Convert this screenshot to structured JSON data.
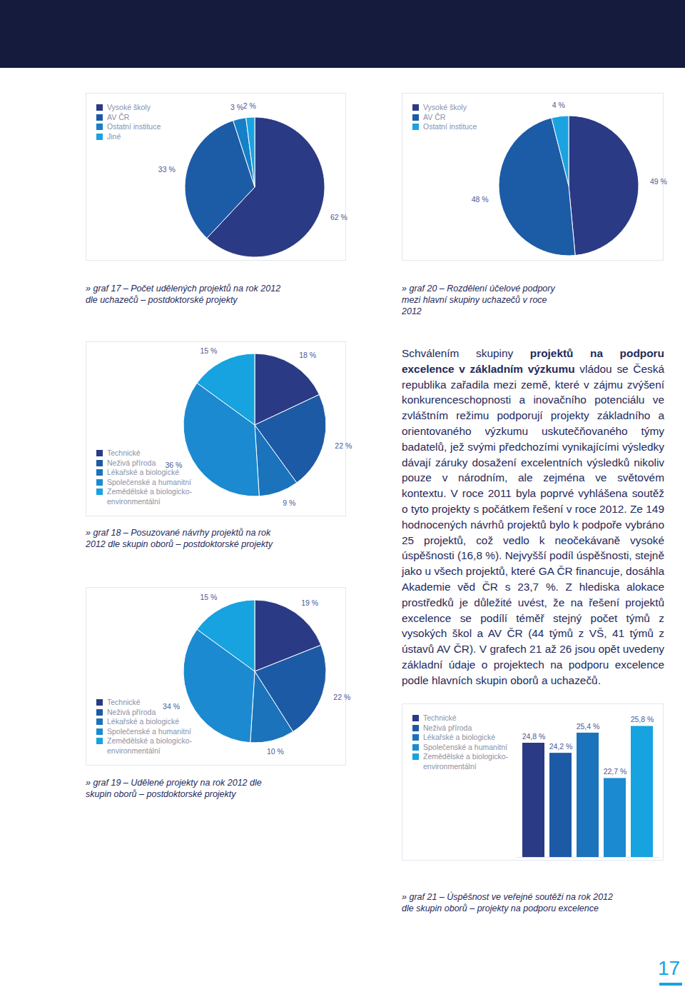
{
  "chart_data": [
    {
      "type": "pie",
      "title": "» graf 17 – Počet udělených projektů na rok 2012 dle uchazečů – postdoktorské projekty",
      "categories": [
        "Vysoké školy",
        "AV ČR",
        "Ostatní instituce",
        "Jiné"
      ],
      "values": [
        62,
        33,
        3,
        2
      ],
      "value_labels": [
        "62 %",
        "33 %",
        "3 %",
        "2 %"
      ],
      "colors": [
        "#2b3a84",
        "#1c5ba6",
        "#1580c8",
        "#1aa3e0"
      ],
      "data_labels": true,
      "legend": "top-left"
    },
    {
      "type": "pie",
      "title": "» graf 20 – Rozdělení účelové podpory mezi hlavní skupiny uchazečů v roce 2012",
      "categories": [
        "Vysoké školy",
        "AV ČR",
        "Ostatní instituce"
      ],
      "values": [
        49,
        48,
        4
      ],
      "value_labels": [
        "49 %",
        "48 %",
        "4 %"
      ],
      "colors": [
        "#2b3a84",
        "#1c5ba6",
        "#1aa3e0"
      ],
      "data_labels": true,
      "legend": "top-left"
    },
    {
      "type": "pie",
      "title": "» graf 18 – Posuzované návrhy projektů na rok 2012 dle skupin oborů – postdoktorské projekty",
      "categories": [
        "Technické",
        "Neživá příroda",
        "Lékařské a biologické",
        "Společenské a humanitní",
        "Zemědělské a biologicko-environmentální"
      ],
      "values": [
        18,
        22,
        9,
        36,
        15
      ],
      "value_labels": [
        "18 %",
        "22 %",
        "9 %",
        "36 %",
        "15 %"
      ],
      "colors": [
        "#2b3a84",
        "#1d5aa6",
        "#1a73bb",
        "#1b8ad0",
        "#16a3df"
      ],
      "data_labels": true,
      "legend": "bottom-left"
    },
    {
      "type": "pie",
      "title": "» graf 19 – Udělené projekty na rok 2012 dle skupin oborů – postdoktorské projekty",
      "categories": [
        "Technické",
        "Neživá příroda",
        "Lékařské a biologické",
        "Společenské a humanitní",
        "Zemědělské a biologicko-environmentální"
      ],
      "values": [
        19,
        22,
        10,
        34,
        15
      ],
      "value_labels": [
        "19 %",
        "22 %",
        "10 %",
        "34 %",
        "15 %"
      ],
      "colors": [
        "#2b3a84",
        "#1d5aa6",
        "#1a73bb",
        "#1b8ad0",
        "#16a3df"
      ],
      "data_labels": true,
      "legend": "bottom-left"
    },
    {
      "type": "bar",
      "title": "» graf 21 – Úspěšnost ve veřejné soutěži na rok 2012 dle skupin oborů – projekty na podporu excelence",
      "categories": [
        "Technické",
        "Neživá příroda",
        "Lékařské a biologické",
        "Společenské a humanitní",
        "Zemědělské a biologicko-environmentální"
      ],
      "values": [
        24.8,
        24.2,
        25.4,
        22.7,
        25.8
      ],
      "value_labels": [
        "24,8 %",
        "24,2 %",
        "25,4 %",
        "22,7 %",
        "25,8 %"
      ],
      "colors": [
        "#2b3a84",
        "#1d5aa6",
        "#1a73bb",
        "#1b8ad0",
        "#16a3df"
      ],
      "ylim": [
        18,
        26.5
      ],
      "tick_labels": false,
      "data_labels": true,
      "legend": "top-left"
    }
  ],
  "body_text": [
    {
      "text": "Schválením skupiny "
    },
    {
      "text": "projektů na podporu excelence v základním výzkumu",
      "bold": true
    },
    {
      "text": " vládou se Česká republika zařadila mezi země, které v zájmu zvýšení konkurenceschopnosti a inovačního potenciálu ve zvláštním režimu podporují projekty základního a orientovaného výzkumu uskutečňovaného týmy badatelů, jež svými předchozími vynikajícími výsledky dávají záruky dosažení excelentních výsledků nikoliv pouze v národním, ale zejména ve světovém kontextu. V roce 2011 byla poprvé vyhlášena soutěž o tyto projekty s počátkem řešení v roce 2012. Ze 149 hodnocených návrhů projektů bylo k podpoře vybráno 25 projektů, což vedlo k neočekávaně vysoké úspěšnosti (16,8 %). Nejvyšší podíl úspěšnosti, stejně jako u všech projektů, které GA ČR financuje, dosáhla Akademie věd ČR s 23,7 %. Z hlediska alokace prostředků je důležité uvést, že na řešení projektů excelence se podílí téměř stejný počet týmů z vysokých škol a AV ČR (44 týmů z VŠ, 41 týmů z ústavů AV ČR). V grafech 21 až 26 jsou opět uvedeny základní údaje o projektech na podporu excelence podle hlavních skupin oborů a uchazečů."
    }
  ],
  "page_number": 17
}
